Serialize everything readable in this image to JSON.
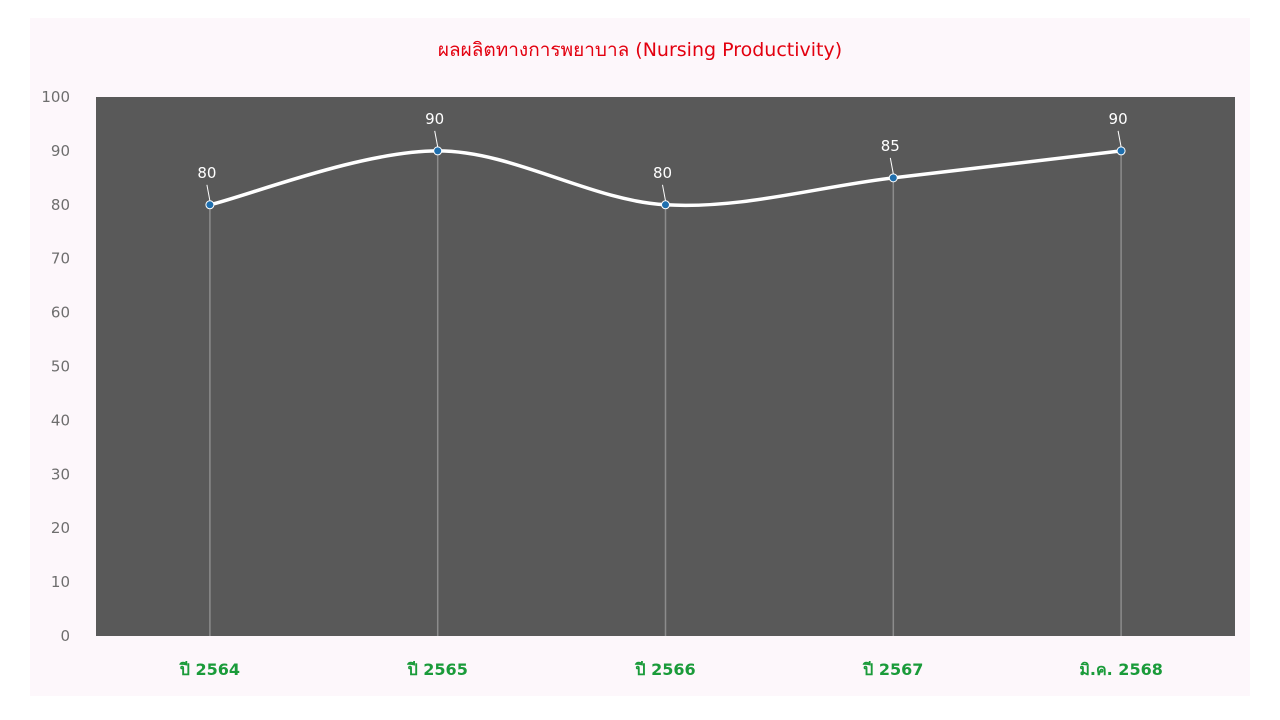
{
  "chart_data": {
    "type": "line",
    "title": "ผลผลิตทางการพยาบาล (Nursing Productivity)",
    "categories": [
      "ปี 2564",
      "ปี 2565",
      "ปี 2566",
      "ปี 2567",
      "มิ.ค. 2568"
    ],
    "series": [
      {
        "values": [
          80,
          90,
          80,
          85,
          90
        ]
      }
    ],
    "data_labels": [
      "80",
      "90",
      "80",
      "85",
      "90"
    ],
    "yticks": [
      "0",
      "10",
      "20",
      "30",
      "40",
      "50",
      "60",
      "70",
      "80",
      "90",
      "100"
    ],
    "ylim": [
      0,
      100
    ],
    "grid": false,
    "legend": "none",
    "smooth": true
  },
  "colors": {
    "title": "#e3000f",
    "plot_background": "#595959",
    "line": "#ffffff",
    "marker": "#1f6fae",
    "x_tick_label": "#1a9b3a",
    "y_tick_label": "#6e6e6e",
    "drop_line": "#8c8c8c",
    "page_background": "#fdf7fb"
  }
}
